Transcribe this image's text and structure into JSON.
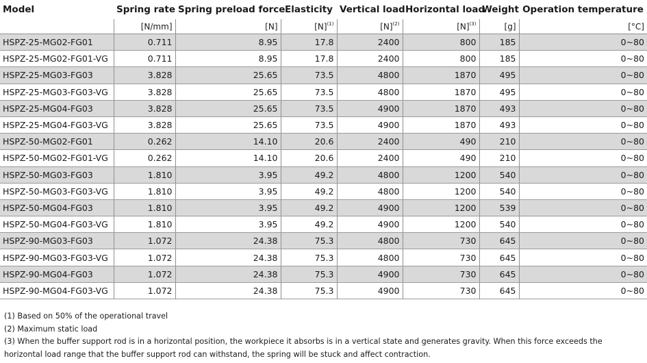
{
  "table": {
    "headers": [
      "Model",
      "Spring rate",
      "Spring preload force",
      "Elasticity",
      "Vertical load",
      "Horizontal load",
      "Weight",
      "Operation temperature"
    ],
    "units": [
      {
        "unit": "",
        "sup": ""
      },
      {
        "unit": "[N/mm]",
        "sup": ""
      },
      {
        "unit": "[N]",
        "sup": ""
      },
      {
        "unit": "[N]",
        "sup": "(1)"
      },
      {
        "unit": "[N]",
        "sup": "(2)"
      },
      {
        "unit": "[N]",
        "sup": "(3)"
      },
      {
        "unit": "[g]",
        "sup": ""
      },
      {
        "unit": "[°C]",
        "sup": ""
      }
    ],
    "rows": [
      [
        "HSPZ-25-MG02-FG01",
        "0.711",
        "8.95",
        "17.8",
        "2400",
        "800",
        "185",
        "0~80"
      ],
      [
        "HSPZ-25-MG02-FG01-VG",
        "0.711",
        "8.95",
        "17.8",
        "2400",
        "800",
        "185",
        "0~80"
      ],
      [
        "HSPZ-25-MG03-FG03",
        "3.828",
        "25.65",
        "73.5",
        "4800",
        "1870",
        "495",
        "0~80"
      ],
      [
        "HSPZ-25-MG03-FG03-VG",
        "3.828",
        "25.65",
        "73.5",
        "4800",
        "1870",
        "495",
        "0~80"
      ],
      [
        "HSPZ-25-MG04-FG03",
        "3.828",
        "25.65",
        "73.5",
        "4900",
        "1870",
        "493",
        "0~80"
      ],
      [
        "HSPZ-25-MG04-FG03-VG",
        "3.828",
        "25.65",
        "73.5",
        "4900",
        "1870",
        "493",
        "0~80"
      ],
      [
        "HSPZ-50-MG02-FG01",
        "0.262",
        "14.10",
        "20.6",
        "2400",
        "490",
        "210",
        "0~80"
      ],
      [
        "HSPZ-50-MG02-FG01-VG",
        "0.262",
        "14.10",
        "20.6",
        "2400",
        "490",
        "210",
        "0~80"
      ],
      [
        "HSPZ-50-MG03-FG03",
        "1.810",
        "3.95",
        "49.2",
        "4800",
        "1200",
        "540",
        "0~80"
      ],
      [
        "HSPZ-50-MG03-FG03-VG",
        "1.810",
        "3.95",
        "49.2",
        "4800",
        "1200",
        "540",
        "0~80"
      ],
      [
        "HSPZ-50-MG04-FG03",
        "1.810",
        "3.95",
        "49.2",
        "4900",
        "1200",
        "539",
        "0~80"
      ],
      [
        "HSPZ-50-MG04-FG03-VG",
        "1.810",
        "3.95",
        "49.2",
        "4900",
        "1200",
        "540",
        "0~80"
      ],
      [
        "HSPZ-90-MG03-FG03",
        "1.072",
        "24.38",
        "75.3",
        "4800",
        "730",
        "645",
        "0~80"
      ],
      [
        "HSPZ-90-MG03-FG03-VG",
        "1.072",
        "24.38",
        "75.3",
        "4800",
        "730",
        "645",
        "0~80"
      ],
      [
        "HSPZ-90-MG04-FG03",
        "1.072",
        "24.38",
        "75.3",
        "4900",
        "730",
        "645",
        "0~80"
      ],
      [
        "HSPZ-90-MG04-FG03-VG",
        "1.072",
        "24.38",
        "75.3",
        "4900",
        "730",
        "645",
        "0~80"
      ]
    ],
    "shade_color": "#d9d9d9"
  },
  "notes": [
    "(1) Based on 50% of the operational travel",
    "(2) Maximum static load",
    "(3) When the buffer support rod is in a horizontal position, the workpiece it absorbs is in a vertical state and generates gravity. When this force exceeds the horizontal load range that the buffer support rod can withstand, the spring will be stuck and affect contraction."
  ]
}
